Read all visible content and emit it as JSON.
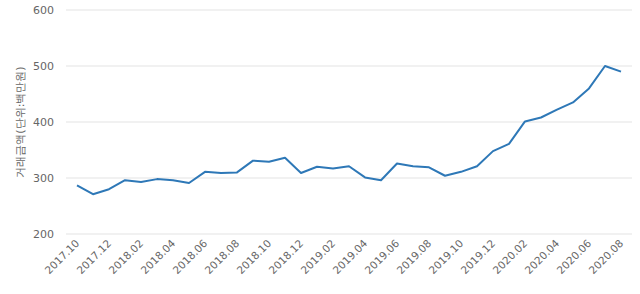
{
  "chart_data": {
    "type": "line",
    "y_label": "거래금액(단위:백만원)",
    "categories": [
      "2017.10",
      null,
      "2017.12",
      null,
      "2018.02",
      null,
      "2018.04",
      null,
      "2018.06",
      null,
      "2018.08",
      null,
      "2018.10",
      null,
      "2018.12",
      null,
      "2019.02",
      null,
      "2019.04",
      null,
      "2019.06",
      null,
      "2019.08",
      null,
      "2019.10",
      null,
      "2019.12",
      null,
      "2020.02",
      null,
      "2020.04",
      null,
      "2020.06",
      null,
      "2020.08"
    ],
    "values": [
      287,
      271,
      280,
      296,
      293,
      298,
      296,
      291,
      311,
      309,
      310,
      331,
      329,
      336,
      309,
      320,
      317,
      321,
      301,
      296,
      326,
      321,
      319,
      304,
      311,
      321,
      348,
      361,
      401,
      408,
      422,
      435,
      460,
      500,
      490
    ],
    "color": "#2e78b7",
    "ylim": [
      200,
      600
    ],
    "yticks": [
      200,
      300,
      400,
      500,
      600
    ],
    "grid": true
  }
}
